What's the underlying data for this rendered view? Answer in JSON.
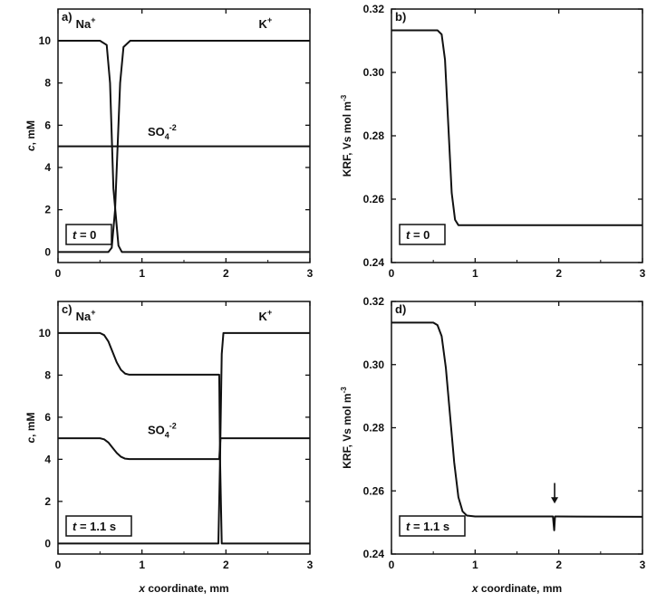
{
  "chart_data": [
    {
      "id": "a",
      "panel_label": "a)",
      "type": "line",
      "xlabel_italic": "",
      "xlabel": "",
      "ylabel_italic": "c",
      "ylabel": ", mM",
      "xlim": [
        0,
        3
      ],
      "ylim": [
        -0.5,
        11.5
      ],
      "xticks": [
        0,
        1,
        2,
        3
      ],
      "yticks": [
        0,
        2,
        4,
        6,
        8,
        10
      ],
      "time_label": {
        "var": "t",
        "text": " = 0"
      },
      "annotations": [
        {
          "base": "Na",
          "sup": "+",
          "sub": "",
          "x": 0.33,
          "y": 10.6
        },
        {
          "base": "K",
          "sup": "+",
          "sub": "",
          "x": 2.47,
          "y": 10.6
        },
        {
          "base": "SO",
          "sub": "4",
          "sup": "-2",
          "x": 1.24,
          "y": 5.5
        }
      ],
      "series": [
        {
          "x": [
            0,
            0.5,
            0.58,
            0.62,
            0.66,
            0.72,
            0.76,
            3
          ],
          "y": [
            10,
            10,
            9.8,
            8.0,
            3.0,
            0.3,
            0,
            0
          ]
        },
        {
          "x": [
            0,
            0.6,
            0.64,
            0.68,
            0.74,
            0.78,
            0.86,
            3
          ],
          "y": [
            0,
            0,
            0.2,
            2.0,
            8.0,
            9.7,
            10,
            10
          ]
        },
        {
          "x": [
            0,
            3
          ],
          "y": [
            5,
            5
          ]
        }
      ]
    },
    {
      "id": "b",
      "panel_label": "b)",
      "type": "line",
      "xlabel_italic": "",
      "xlabel": "",
      "ylabel_italic": "",
      "ylabel": "KRF, Vs mol m",
      "ylabel_sup": "-3",
      "xlim": [
        0,
        3
      ],
      "ylim": [
        0.24,
        0.32
      ],
      "xticks": [
        0,
        1,
        2,
        3
      ],
      "yticks": [
        0.24,
        0.26,
        0.28,
        0.3,
        0.32
      ],
      "ytick_labels": [
        "0.24",
        "0.26",
        "0.28",
        "0.30",
        "0.32"
      ],
      "time_label": {
        "var": "t",
        "text": " = 0"
      },
      "annotations": [],
      "series": [
        {
          "x": [
            0,
            0.55,
            0.6,
            0.64,
            0.68,
            0.72,
            0.76,
            0.8,
            3
          ],
          "y": [
            0.3133,
            0.3133,
            0.312,
            0.304,
            0.283,
            0.262,
            0.2535,
            0.2518,
            0.2518
          ]
        }
      ]
    },
    {
      "id": "c",
      "panel_label": "c)",
      "type": "line",
      "xlabel_italic": "x",
      "xlabel": " coordinate, mm",
      "ylabel_italic": "c",
      "ylabel": ", mM",
      "xlim": [
        0,
        3
      ],
      "ylim": [
        -0.5,
        11.5
      ],
      "xticks": [
        0,
        1,
        2,
        3
      ],
      "yticks": [
        0,
        2,
        4,
        6,
        8,
        10
      ],
      "time_label": {
        "var": "t",
        "text": " = 1.1 s"
      },
      "annotations": [
        {
          "base": "Na",
          "sup": "+",
          "sub": "",
          "x": 0.33,
          "y": 10.6
        },
        {
          "base": "K",
          "sup": "+",
          "sub": "",
          "x": 2.47,
          "y": 10.6
        },
        {
          "base": "SO",
          "sub": "4",
          "sup": "-2",
          "x": 1.24,
          "y": 5.2
        }
      ],
      "series": [
        {
          "x": [
            0,
            0.5,
            0.55,
            0.6,
            0.65,
            0.7,
            0.75,
            0.8,
            0.85,
            1.92,
            1.93,
            1.95,
            3
          ],
          "y": [
            10,
            10,
            9.9,
            9.6,
            9.1,
            8.6,
            8.25,
            8.07,
            8.02,
            8.02,
            4.0,
            0,
            0
          ]
        },
        {
          "x": [
            0,
            1.91,
            1.93,
            1.95,
            1.97,
            3
          ],
          "y": [
            0,
            0,
            4.0,
            9.0,
            10,
            10
          ]
        },
        {
          "x": [
            0,
            0.5,
            0.55,
            0.6,
            0.65,
            0.7,
            0.75,
            0.8,
            0.85,
            1.92,
            1.935,
            3
          ],
          "y": [
            5,
            5,
            4.95,
            4.8,
            4.55,
            4.3,
            4.12,
            4.03,
            4.01,
            4.01,
            5.0,
            5.0
          ]
        }
      ]
    },
    {
      "id": "d",
      "panel_label": "d)",
      "type": "line",
      "xlabel_italic": "x",
      "xlabel": " coordinate, mm",
      "ylabel_italic": "",
      "ylabel": "KRF, Vs mol m",
      "ylabel_sup": "-3",
      "xlim": [
        0,
        3
      ],
      "ylim": [
        0.24,
        0.32
      ],
      "xticks": [
        0,
        1,
        2,
        3
      ],
      "yticks": [
        0.24,
        0.26,
        0.28,
        0.3,
        0.32
      ],
      "ytick_labels": [
        "0.24",
        "0.26",
        "0.28",
        "0.30",
        "0.32"
      ],
      "time_label": {
        "var": "t",
        "text": " = 1.1 s"
      },
      "annotations": [],
      "arrow": {
        "x": 1.95,
        "y_from": 0.2625,
        "y_to": 0.256
      },
      "series": [
        {
          "x": [
            0,
            0.5,
            0.55,
            0.6,
            0.65,
            0.7,
            0.75,
            0.8,
            0.85,
            0.9,
            1.0,
            1.93,
            1.945,
            1.955,
            1.97,
            3
          ],
          "y": [
            0.3133,
            0.3133,
            0.3125,
            0.309,
            0.299,
            0.284,
            0.269,
            0.258,
            0.2535,
            0.2522,
            0.2519,
            0.2519,
            0.2475,
            0.2519,
            0.2519,
            0.2518
          ]
        }
      ]
    }
  ]
}
